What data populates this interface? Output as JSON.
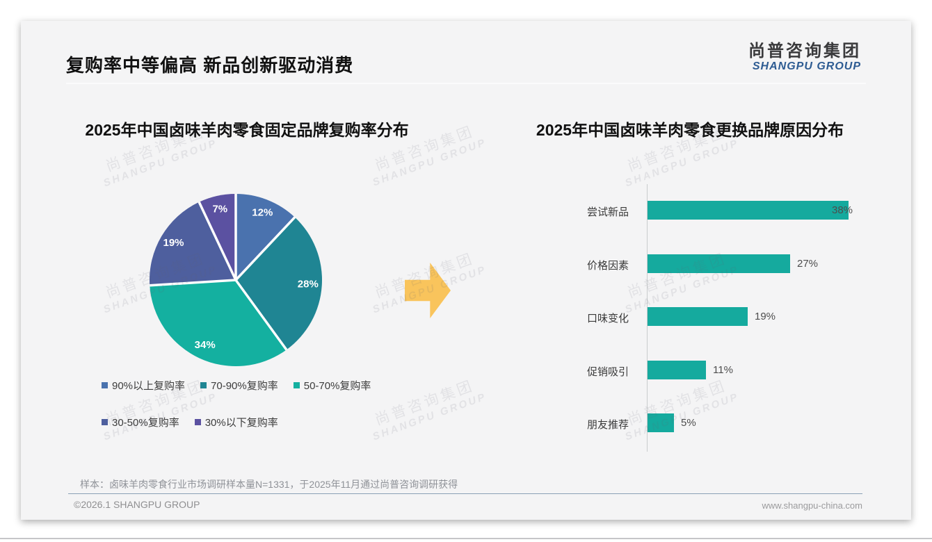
{
  "page": {
    "title": "复购率中等偏高 新品创新驱动消费",
    "logo": {
      "cn": "尚普咨询集团",
      "en": "SHANGPU GROUP"
    },
    "watermark": {
      "line1": "尚普咨询集团",
      "line2": "SHANGPU GROUP"
    },
    "footer": {
      "sample_note": "样本：卤味羊肉零食行业市场调研样本量N=1331，于2025年11月通过尚普咨询调研获得",
      "copyright": "©2026.1 SHANGPU GROUP",
      "website": "www.shangpu-china.com"
    }
  },
  "colors": {
    "slide_bg": "#f4f4f5",
    "bar_teal": "#15aa9e",
    "arrow_yellow": "#f9c45c",
    "logo_blue": "#2d5b92",
    "footer_line_blue": "#8aa0b5"
  },
  "chart_data": [
    {
      "type": "pie",
      "title": "2025年中国卤味羊肉零食固定品牌复购率分布",
      "labels": [
        "90%以上复购率",
        "70-90%复购率",
        "50-70%复购率",
        "30-50%复购率",
        "30%以下复购率"
      ],
      "values": [
        12,
        28,
        34,
        19,
        7
      ],
      "value_labels": [
        "12%",
        "28%",
        "34%",
        "19%",
        "7%"
      ],
      "colors": [
        "#4a72ae",
        "#1f8593",
        "#14b0a0",
        "#4e5f9e",
        "#5b51a1"
      ],
      "start_angle_deg": 0,
      "direction": "clockwise",
      "legend_position": "bottom"
    },
    {
      "type": "bar",
      "orientation": "horizontal",
      "title": "2025年中国卤味羊肉零食更换品牌原因分布",
      "categories": [
        "尝试新品",
        "价格因素",
        "口味变化",
        "促销吸引",
        "朋友推荐"
      ],
      "values": [
        38,
        27,
        19,
        11,
        5
      ],
      "value_labels": [
        "38%",
        "27%",
        "19%",
        "11%",
        "5%"
      ],
      "unit": "%",
      "xlim": [
        0,
        40
      ],
      "grid": false,
      "bar_color": "#15aa9e"
    }
  ]
}
